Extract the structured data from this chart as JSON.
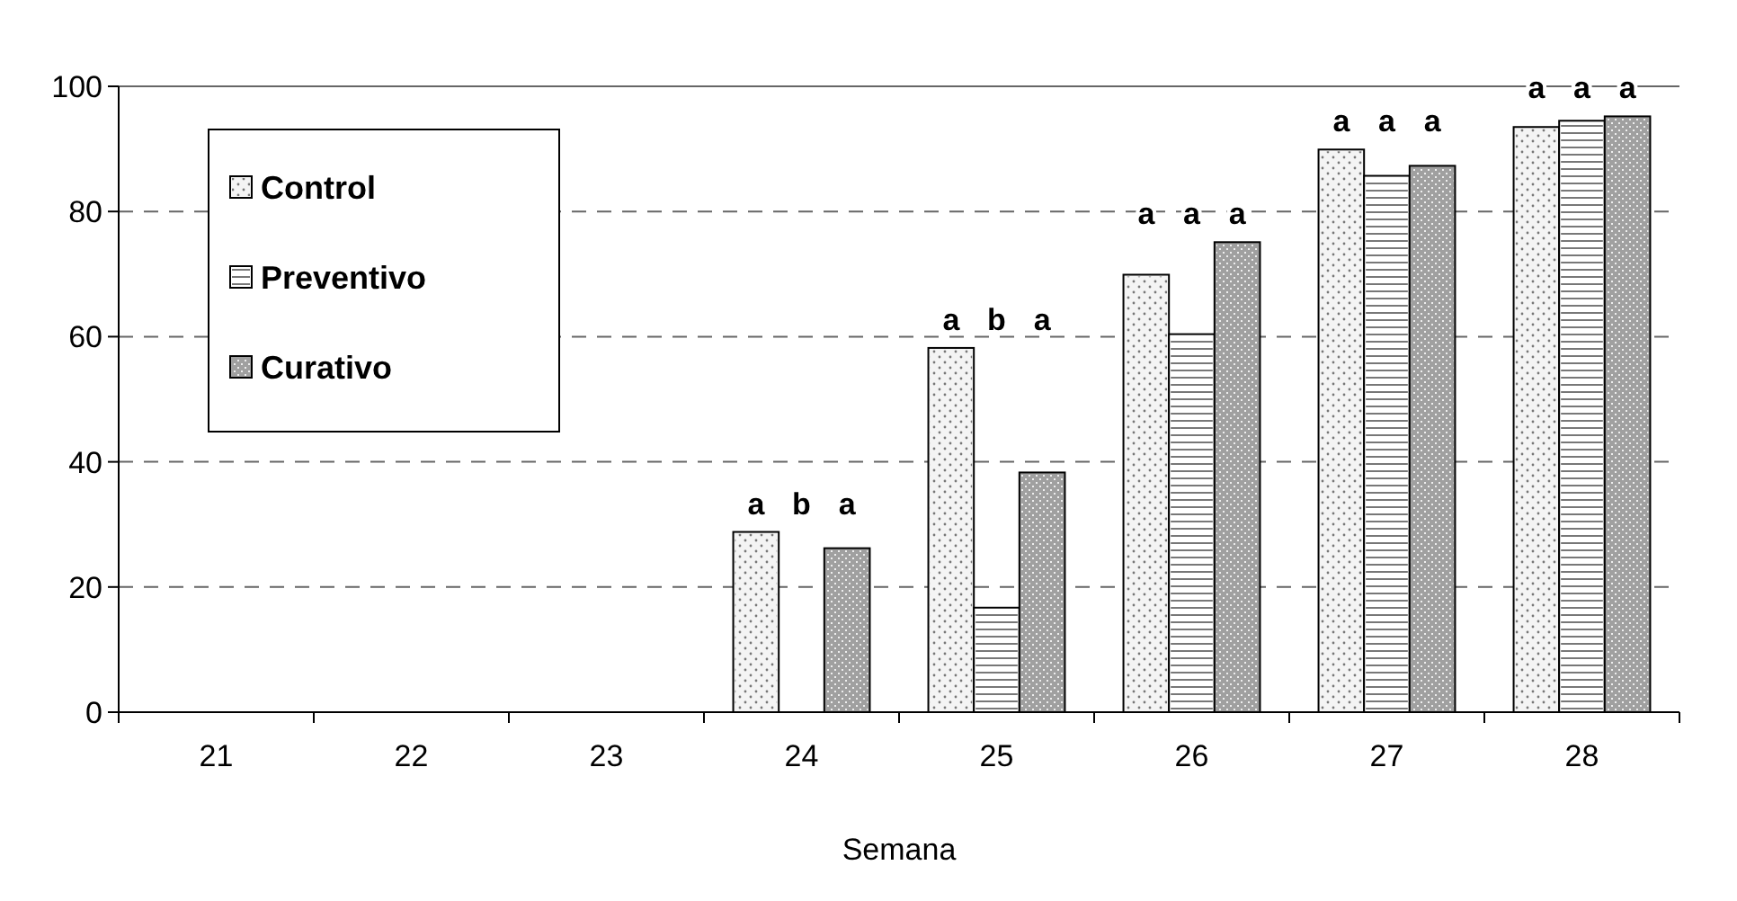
{
  "chart_data": {
    "type": "bar",
    "xlabel": "Semana",
    "categories": [
      "21",
      "22",
      "23",
      "24",
      "25",
      "26",
      "27",
      "28"
    ],
    "series": [
      {
        "name": "Control",
        "color": "#f4f4f4",
        "values": [
          null,
          null,
          null,
          28.8,
          58.2,
          69.9,
          89.9,
          93.5
        ]
      },
      {
        "name": "Preventivo",
        "color": "#ffffff",
        "values": [
          null,
          null,
          null,
          0,
          16.7,
          60.4,
          85.7,
          94.5
        ]
      },
      {
        "name": "Curativo",
        "color": "#a0a0a0",
        "values": [
          null,
          null,
          null,
          26.2,
          38.3,
          75.1,
          87.3,
          95.2
        ]
      }
    ],
    "annotations": [
      "a",
      "b",
      "a",
      "a",
      "b",
      "a",
      "a",
      "a",
      "a",
      "a",
      "a",
      "a",
      "a",
      "a",
      "a"
    ],
    "ylim": [
      0,
      100
    ],
    "yticks": [
      0,
      20,
      40,
      60,
      80,
      100
    ],
    "grid": "y",
    "legend": "top left"
  }
}
